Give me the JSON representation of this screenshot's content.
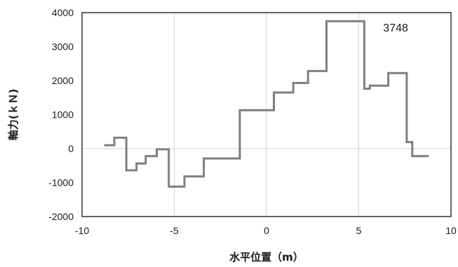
{
  "chart_data": {
    "type": "line",
    "title": "",
    "xlabel": "水平位置（m）",
    "ylabel": "軸力(ｋＮ)",
    "xlim": [
      -10,
      10
    ],
    "ylim": [
      -2000,
      4000
    ],
    "x_ticks": [
      -10,
      -5,
      0,
      5,
      10
    ],
    "y_ticks": [
      -2000,
      -1000,
      0,
      1000,
      2000,
      3000,
      4000
    ],
    "x_tick_labels": [
      "-10",
      "-5",
      "0",
      "5",
      "10"
    ],
    "y_tick_labels": [
      "-2000",
      "-1000",
      "0",
      "1000",
      "2000",
      "3000",
      "4000"
    ],
    "grid": {
      "vertical": true,
      "horizontal": false,
      "zero_line": true
    },
    "legend": "none",
    "series": [
      {
        "color": "#7f7f7f",
        "step": true,
        "x": [
          -8.8,
          -8.25,
          -8.25,
          -7.6,
          -7.6,
          -7.05,
          -7.05,
          -6.55,
          -6.55,
          -5.95,
          -5.95,
          -5.3,
          -5.3,
          -4.45,
          -4.45,
          -3.4,
          -3.4,
          -1.45,
          -1.45,
          0.4,
          0.4,
          1.45,
          1.45,
          2.25,
          2.25,
          3.25,
          3.25,
          5.3,
          5.3,
          5.6,
          5.6,
          6.6,
          6.6,
          7.6,
          7.6,
          7.9,
          7.9,
          8.8
        ],
        "y": [
          100,
          100,
          320,
          320,
          -640,
          -640,
          -440,
          -440,
          -220,
          -220,
          -20,
          -20,
          -1120,
          -1120,
          -820,
          -820,
          -290,
          -290,
          1130,
          1130,
          1650,
          1650,
          1930,
          1930,
          2280,
          2280,
          3748,
          3748,
          1760,
          1760,
          1850,
          1850,
          2220,
          2220,
          190,
          190,
          -220,
          -220
        ]
      }
    ],
    "annotations": [
      {
        "text": "3748",
        "x": 7.0,
        "y": 3440
      }
    ]
  }
}
